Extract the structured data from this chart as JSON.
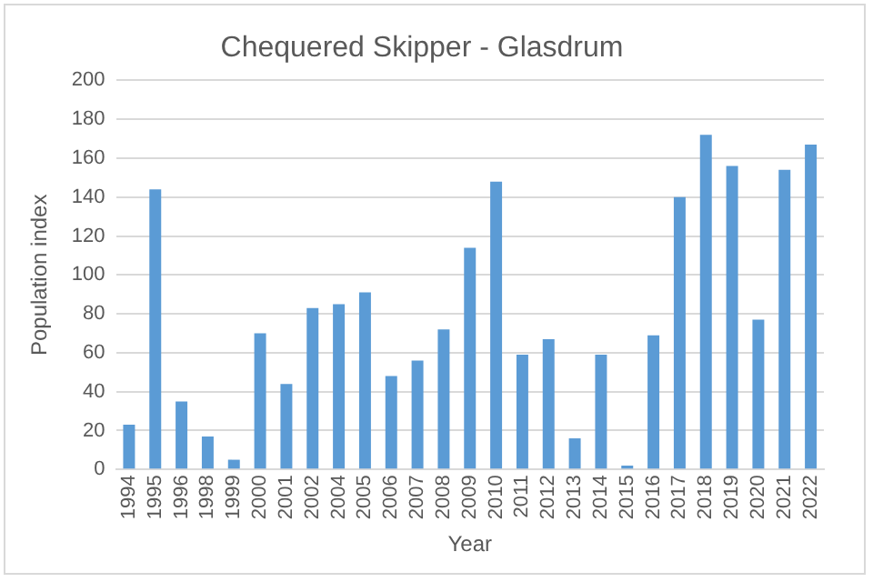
{
  "chart_data": {
    "type": "bar",
    "title": "Chequered Skipper - Glasdrum",
    "xlabel": "Year",
    "ylabel": "Population index",
    "categories": [
      "1994",
      "1995",
      "1996",
      "1998",
      "1999",
      "2000",
      "2001",
      "2002",
      "2004",
      "2005",
      "2006",
      "2007",
      "2008",
      "2009",
      "2010",
      "2011",
      "2012",
      "2013",
      "2014",
      "2015",
      "2016",
      "2017",
      "2018",
      "2019",
      "2020",
      "2021",
      "2022"
    ],
    "values": [
      23,
      144,
      35,
      17,
      5,
      70,
      44,
      83,
      85,
      91,
      48,
      56,
      72,
      114,
      148,
      59,
      67,
      16,
      59,
      2,
      69,
      140,
      172,
      156,
      77,
      154,
      167
    ],
    "color": "#5b9bd5",
    "ylim": [
      0,
      200
    ],
    "yticks": [
      0,
      20,
      40,
      60,
      80,
      100,
      120,
      140,
      160,
      180,
      200
    ],
    "grid": "y"
  }
}
